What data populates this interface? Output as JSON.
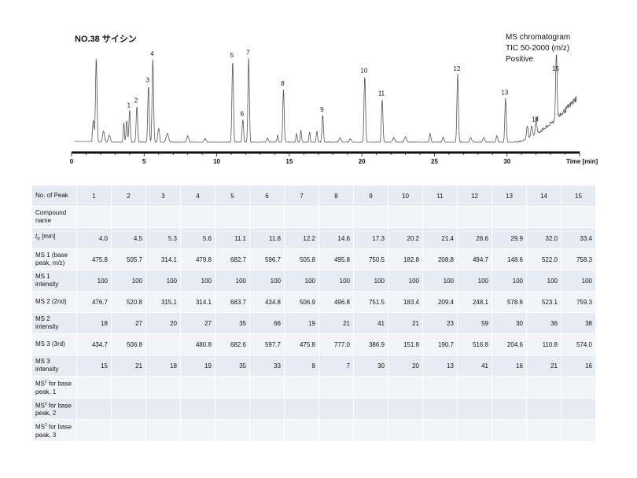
{
  "title": "NO.38 サイシン",
  "meta": {
    "line1": "MS chromatogram",
    "line2": "TIC 50-2000 (m/z)",
    "line3": "Positive"
  },
  "chart_data": {
    "type": "line",
    "title": "",
    "xlabel": "Time [min]",
    "xlim": [
      0,
      35
    ],
    "xticks": [
      "0",
      "5",
      "10",
      "15",
      "20",
      "25",
      "30"
    ],
    "peaks": [
      {
        "label": "1",
        "t": 4.0,
        "height": 0.36
      },
      {
        "label": "2",
        "t": 4.5,
        "height": 0.41
      },
      {
        "label": "3",
        "t": 5.3,
        "height": 0.64
      },
      {
        "label": "4",
        "t": 5.6,
        "height": 0.94
      },
      {
        "label": "5",
        "t": 11.1,
        "height": 0.92
      },
      {
        "label": "6",
        "t": 11.8,
        "height": 0.26
      },
      {
        "label": "7",
        "t": 12.2,
        "height": 0.95
      },
      {
        "label": "8",
        "t": 14.6,
        "height": 0.6
      },
      {
        "label": "9",
        "t": 17.3,
        "height": 0.31
      },
      {
        "label": "10",
        "t": 20.2,
        "height": 0.75
      },
      {
        "label": "11",
        "t": 21.4,
        "height": 0.49
      },
      {
        "label": "12",
        "t": 26.6,
        "height": 0.77
      },
      {
        "label": "13",
        "t": 29.9,
        "height": 0.5
      },
      {
        "label": "14",
        "t": 32.0,
        "height": 0.2
      },
      {
        "label": "15",
        "t": 33.4,
        "height": 0.77
      }
    ],
    "line_color": "#555555"
  },
  "table": {
    "rows": [
      {
        "header": "No. of Peak",
        "values": [
          "1",
          "2",
          "3",
          "4",
          "5",
          "6",
          "7",
          "8",
          "9",
          "10",
          "11",
          "12",
          "13",
          "14",
          "15"
        ]
      },
      {
        "header": "Compound name",
        "values": [
          "",
          "",
          "",
          "",
          "",
          "",
          "",
          "",
          "",
          "",
          "",
          "",
          "",
          "",
          ""
        ]
      },
      {
        "header_sym": "t",
        "header_sub": "R",
        "header_rest": " [min]",
        "values": [
          "4.0",
          "4.5",
          "5.3",
          "5.6",
          "11.1",
          "11.8",
          "12.2",
          "14.6",
          "17.3",
          "20.2",
          "21.4",
          "26.6",
          "29.9",
          "32.0",
          "33.4"
        ]
      },
      {
        "header": "MS 1 (base peak, m/z)",
        "values": [
          "475.8",
          "505.7",
          "314.1",
          "479.8",
          "682.7",
          "596.7",
          "505.8",
          "495.8",
          "750.5",
          "182.8",
          "208.8",
          "494.7",
          "148.6",
          "522.0",
          "758.3"
        ]
      },
      {
        "header": "MS 1 intensity",
        "values": [
          "100",
          "100",
          "100",
          "100",
          "100",
          "100",
          "100",
          "100",
          "100",
          "100",
          "100",
          "100",
          "100",
          "100",
          "100"
        ]
      },
      {
        "header": "MS 2 (2nd)",
        "values": [
          "476.7",
          "520.8",
          "315.1",
          "314.1",
          "683.7",
          "434.8",
          "506.9",
          "496.8",
          "751.5",
          "183.4",
          "209.4",
          "248.1",
          "578.6",
          "523.1",
          "759.3"
        ]
      },
      {
        "header": "MS 2 intensity",
        "values": [
          "18",
          "27",
          "20",
          "27",
          "35",
          "66",
          "19",
          "21",
          "41",
          "21",
          "23",
          "59",
          "30",
          "36",
          "38"
        ]
      },
      {
        "header": "MS 3 (3rd)",
        "values": [
          "434.7",
          "506.8",
          "",
          "480.8",
          "682.6",
          "597.7",
          "475.8",
          "777.0",
          "386.9",
          "151.8",
          "190.7",
          "516.8",
          "204.6",
          "110.8",
          "574.0"
        ]
      },
      {
        "header": "MS 3 intensity",
        "values": [
          "15",
          "21",
          "18",
          "19",
          "35",
          "33",
          "8",
          "7",
          "30",
          "20",
          "13",
          "41",
          "16",
          "21",
          "16"
        ]
      },
      {
        "header_ms": "MS",
        "header_sup": "2",
        "header_rest": " for base peak, 1",
        "values": [
          "",
          "",
          "",
          "",
          "",
          "",
          "",
          "",
          "",
          "",
          "",
          "",
          "",
          "",
          ""
        ]
      },
      {
        "header_ms": "MS",
        "header_sup": "2",
        "header_rest": " for base peak, 2",
        "values": [
          "",
          "",
          "",
          "",
          "",
          "",
          "",
          "",
          "",
          "",
          "",
          "",
          "",
          "",
          ""
        ]
      },
      {
        "header_ms": "MS",
        "header_sup": "2",
        "header_rest": " for base peak, 3",
        "values": [
          "",
          "",
          "",
          "",
          "",
          "",
          "",
          "",
          "",
          "",
          "",
          "",
          "",
          "",
          ""
        ]
      }
    ]
  }
}
